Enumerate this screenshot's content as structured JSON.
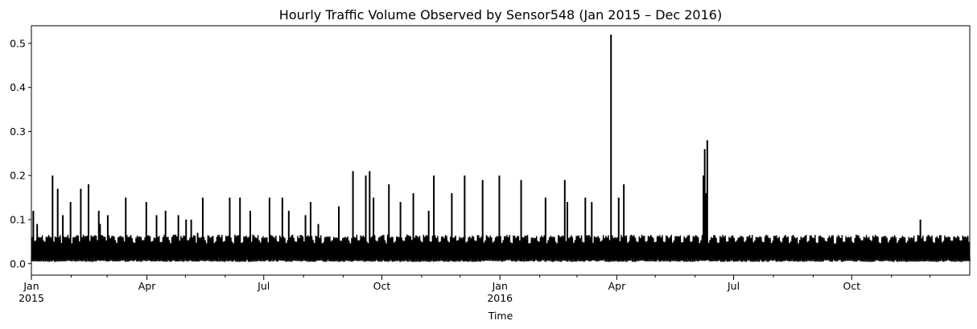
{
  "chart_data": {
    "type": "line",
    "title": "Hourly Traffic Volume Observed by Sensor548 (Jan 2015 – Dec 2016)",
    "xlabel": "Time",
    "ylabel": "",
    "x_range": [
      "2015-01-01",
      "2016-12-31"
    ],
    "ylim": [
      -0.026,
      0.54
    ],
    "yticks": [
      0.0,
      0.1,
      0.2,
      0.3,
      0.4,
      0.5
    ],
    "ytick_labels": [
      "0.0",
      "0.1",
      "0.2",
      "0.3",
      "0.4",
      "0.5"
    ],
    "xticks": [
      {
        "date": "2015-01-01",
        "label": "Jan",
        "label2": "2015"
      },
      {
        "date": "2015-04-01",
        "label": "Apr",
        "label2": ""
      },
      {
        "date": "2015-07-01",
        "label": "Jul",
        "label2": ""
      },
      {
        "date": "2015-10-01",
        "label": "Oct",
        "label2": ""
      },
      {
        "date": "2016-01-01",
        "label": "Jan",
        "label2": "2016"
      },
      {
        "date": "2016-04-01",
        "label": "Apr",
        "label2": ""
      },
      {
        "date": "2016-07-01",
        "label": "Jul",
        "label2": ""
      },
      {
        "date": "2016-10-01",
        "label": "Oct",
        "label2": ""
      }
    ],
    "grid": false,
    "legend": "none",
    "line_color": "#000000",
    "baseline_band": {
      "low": 0.008,
      "high": 0.058
    },
    "series": [
      {
        "name": "",
        "x": [
          "2015-01-02",
          "2015-01-05",
          "2015-01-08",
          "2015-01-17",
          "2015-01-21",
          "2015-01-25",
          "2015-01-31",
          "2015-02-08",
          "2015-02-14",
          "2015-02-22",
          "2015-02-23",
          "2015-03-01",
          "2015-03-15",
          "2015-03-31",
          "2015-04-08",
          "2015-04-15",
          "2015-04-25",
          "2015-05-01",
          "2015-05-05",
          "2015-05-10",
          "2015-05-14",
          "2015-06-04",
          "2015-06-12",
          "2015-06-20",
          "2015-07-05",
          "2015-07-15",
          "2015-07-20",
          "2015-08-02",
          "2015-08-06",
          "2015-08-12",
          "2015-08-28",
          "2015-09-08",
          "2015-09-18",
          "2015-09-21",
          "2015-09-24",
          "2015-10-06",
          "2015-10-15",
          "2015-10-25",
          "2015-11-06",
          "2015-11-10",
          "2015-11-24",
          "2015-12-04",
          "2015-12-18",
          "2015-12-31",
          "2016-01-17",
          "2016-02-05",
          "2016-02-20",
          "2016-02-22",
          "2016-03-07",
          "2016-03-12",
          "2016-03-27",
          "2016-04-02",
          "2016-04-06",
          "2016-06-07",
          "2016-06-08",
          "2016-06-09",
          "2016-06-10",
          "2016-11-23"
        ],
        "y": [
          0.12,
          0.09,
          0.05,
          0.2,
          0.17,
          0.11,
          0.14,
          0.17,
          0.18,
          0.12,
          0.09,
          0.11,
          0.15,
          0.14,
          0.11,
          0.12,
          0.11,
          0.1,
          0.1,
          0.07,
          0.15,
          0.15,
          0.15,
          0.12,
          0.15,
          0.15,
          0.12,
          0.11,
          0.14,
          0.09,
          0.13,
          0.21,
          0.2,
          0.21,
          0.15,
          0.18,
          0.14,
          0.16,
          0.12,
          0.2,
          0.16,
          0.2,
          0.19,
          0.2,
          0.19,
          0.15,
          0.19,
          0.14,
          0.15,
          0.14,
          0.52,
          0.15,
          0.18,
          0.2,
          0.26,
          0.16,
          0.28,
          0.1
        ]
      }
    ]
  }
}
